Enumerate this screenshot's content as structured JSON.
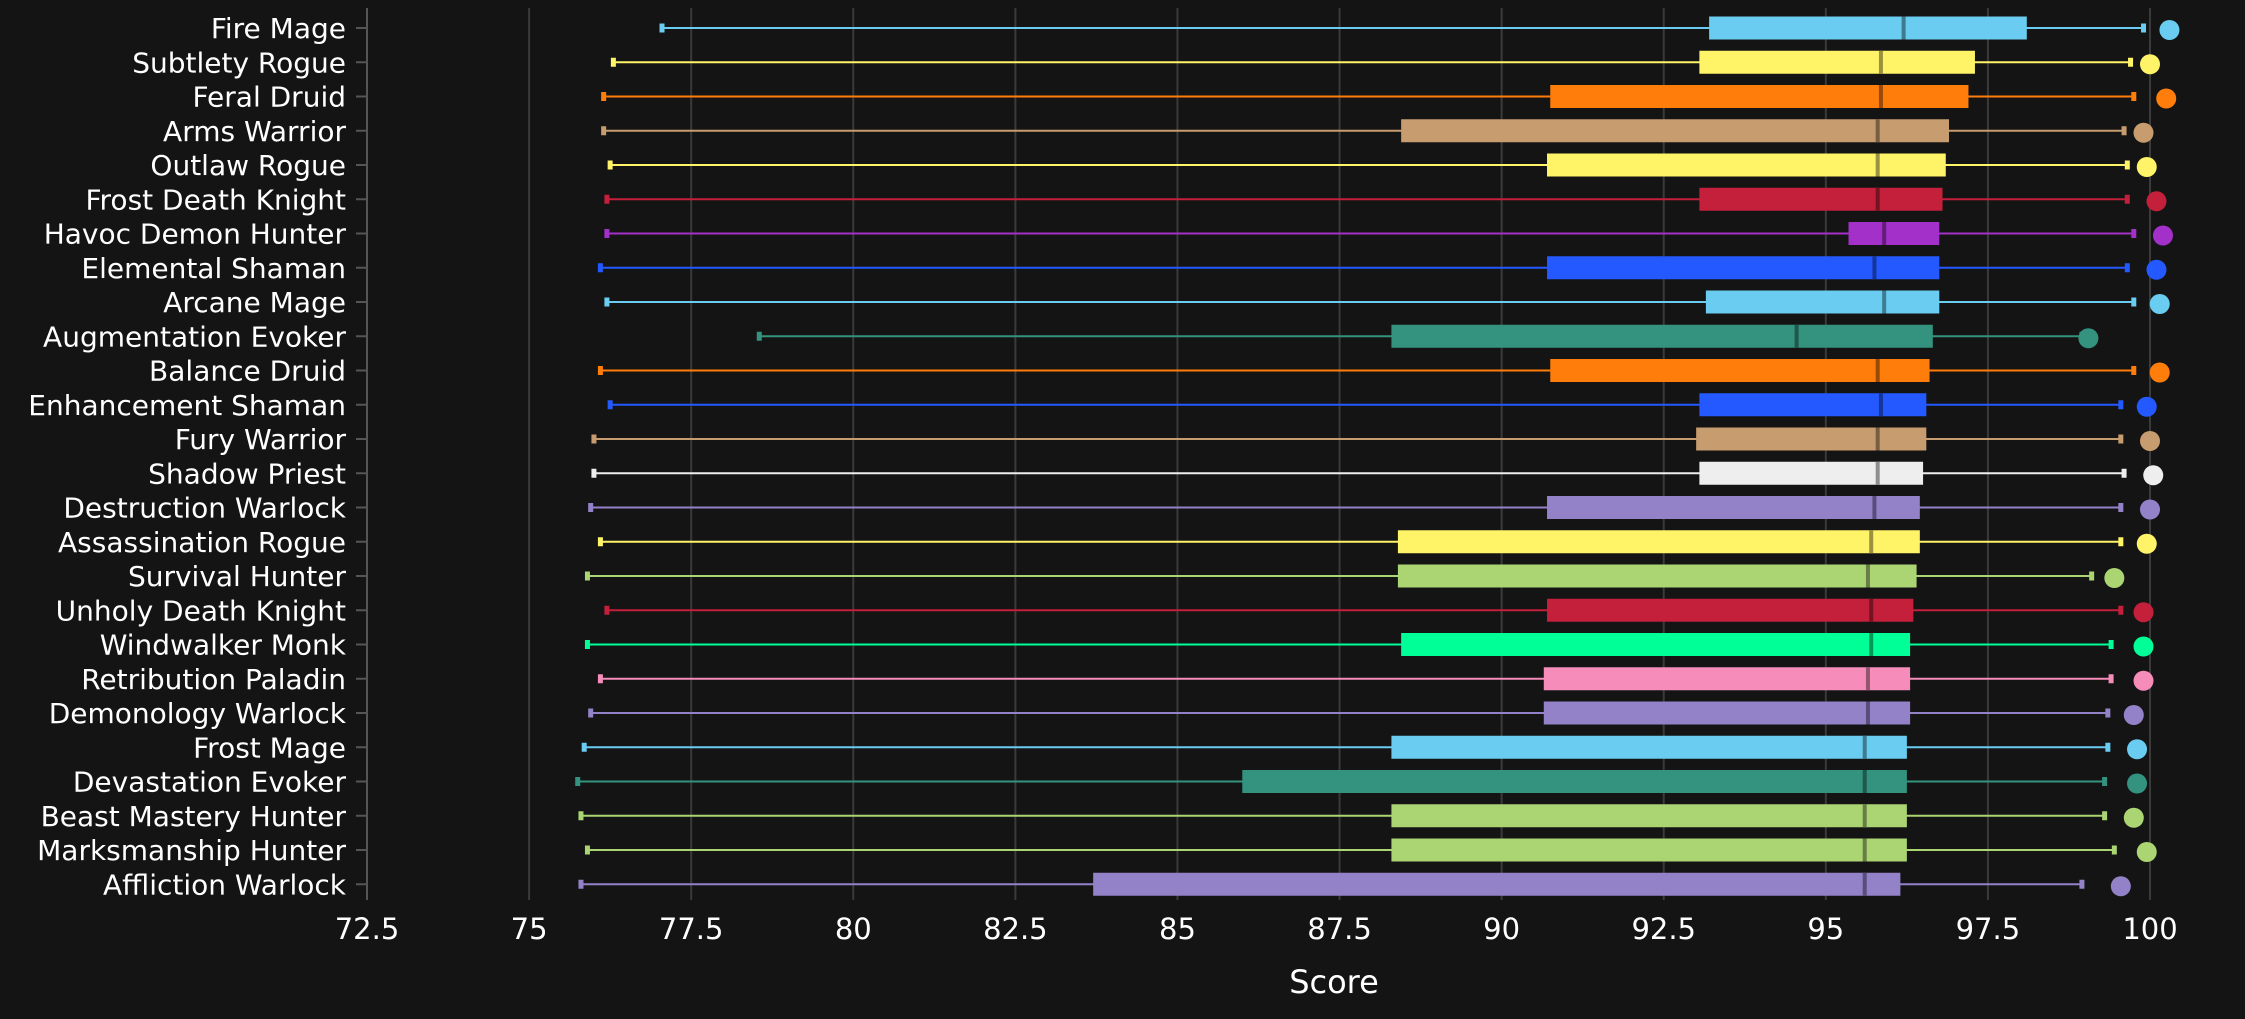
{
  "chart_data": {
    "type": "boxplot",
    "title": "",
    "xlabel": "Score",
    "ylabel": "",
    "xlim": [
      72.5,
      100
    ],
    "x_ticks": [
      "72.5",
      "75",
      "77.5",
      "80",
      "82.5",
      "85",
      "87.5",
      "90",
      "92.5",
      "95",
      "97.5",
      "100"
    ],
    "grid": "vertical",
    "background": "#141414",
    "series": [
      {
        "name": "Fire Mage",
        "color": "#69ccf0",
        "min": 77.05,
        "q1": 93.2,
        "median": 96.2,
        "q3": 98.1,
        "max": 99.9,
        "outliers": [
          100.3
        ]
      },
      {
        "name": "Subtlety Rogue",
        "color": "#fff468",
        "min": 76.3,
        "q1": 93.05,
        "median": 95.85,
        "q3": 97.3,
        "max": 99.7,
        "outliers": [
          100.0
        ]
      },
      {
        "name": "Feral Druid",
        "color": "#ff7d0a",
        "min": 76.15,
        "q1": 90.75,
        "median": 95.85,
        "q3": 97.2,
        "max": 99.75,
        "outliers": [
          100.25
        ]
      },
      {
        "name": "Arms Warrior",
        "color": "#c79c6e",
        "min": 76.15,
        "q1": 88.45,
        "median": 95.8,
        "q3": 96.9,
        "max": 99.6,
        "outliers": [
          99.9
        ]
      },
      {
        "name": "Outlaw Rogue",
        "color": "#fff468",
        "min": 76.25,
        "q1": 90.7,
        "median": 95.8,
        "q3": 96.85,
        "max": 99.65,
        "outliers": [
          99.95
        ]
      },
      {
        "name": "Frost Death Knight",
        "color": "#c41f3b",
        "min": 76.2,
        "q1": 93.05,
        "median": 95.8,
        "q3": 96.8,
        "max": 99.65,
        "outliers": [
          100.1
        ]
      },
      {
        "name": "Havoc Demon Hunter",
        "color": "#a330c9",
        "min": 76.2,
        "q1": 95.35,
        "median": 95.9,
        "q3": 96.75,
        "max": 99.75,
        "outliers": [
          100.2
        ]
      },
      {
        "name": "Elemental Shaman",
        "color": "#2359ff",
        "min": 76.1,
        "q1": 90.7,
        "median": 95.75,
        "q3": 96.75,
        "max": 99.65,
        "outliers": [
          100.1
        ]
      },
      {
        "name": "Arcane Mage",
        "color": "#69ccf0",
        "min": 76.2,
        "q1": 93.15,
        "median": 95.9,
        "q3": 96.75,
        "max": 99.75,
        "outliers": [
          100.15
        ]
      },
      {
        "name": "Augmentation Evoker",
        "color": "#33937f",
        "min": 78.55,
        "q1": 88.3,
        "median": 94.55,
        "q3": 96.65,
        "max": 98.95,
        "outliers": [
          99.05
        ]
      },
      {
        "name": "Balance Druid",
        "color": "#ff7d0a",
        "min": 76.1,
        "q1": 90.75,
        "median": 95.8,
        "q3": 96.6,
        "max": 99.75,
        "outliers": [
          100.15
        ]
      },
      {
        "name": "Enhancement Shaman",
        "color": "#2359ff",
        "min": 76.25,
        "q1": 93.05,
        "median": 95.85,
        "q3": 96.55,
        "max": 99.55,
        "outliers": [
          99.95
        ]
      },
      {
        "name": "Fury Warrior",
        "color": "#c79c6e",
        "min": 76.0,
        "q1": 93.0,
        "median": 95.8,
        "q3": 96.55,
        "max": 99.55,
        "outliers": [
          100.0
        ]
      },
      {
        "name": "Shadow Priest",
        "color": "#eeeeee",
        "min": 76.0,
        "q1": 93.05,
        "median": 95.8,
        "q3": 96.5,
        "max": 99.6,
        "outliers": [
          100.05
        ]
      },
      {
        "name": "Destruction Warlock",
        "color": "#9482c9",
        "min": 75.95,
        "q1": 90.7,
        "median": 95.75,
        "q3": 96.45,
        "max": 99.55,
        "outliers": [
          100.0
        ]
      },
      {
        "name": "Assassination Rogue",
        "color": "#fff468",
        "min": 76.1,
        "q1": 88.4,
        "median": 95.7,
        "q3": 96.45,
        "max": 99.55,
        "outliers": [
          99.95
        ]
      },
      {
        "name": "Survival Hunter",
        "color": "#abd473",
        "min": 75.9,
        "q1": 88.4,
        "median": 95.65,
        "q3": 96.4,
        "max": 99.1,
        "outliers": [
          99.45
        ]
      },
      {
        "name": "Unholy Death Knight",
        "color": "#c41f3b",
        "min": 76.2,
        "q1": 90.7,
        "median": 95.7,
        "q3": 96.35,
        "max": 99.55,
        "outliers": [
          99.9
        ]
      },
      {
        "name": "Windwalker Monk",
        "color": "#00ff96",
        "min": 75.9,
        "q1": 88.45,
        "median": 95.7,
        "q3": 96.3,
        "max": 99.4,
        "outliers": [
          99.9
        ]
      },
      {
        "name": "Retribution Paladin",
        "color": "#f58cba",
        "min": 76.1,
        "q1": 90.65,
        "median": 95.65,
        "q3": 96.3,
        "max": 99.4,
        "outliers": [
          99.9
        ]
      },
      {
        "name": "Demonology Warlock",
        "color": "#9482c9",
        "min": 75.95,
        "q1": 90.65,
        "median": 95.65,
        "q3": 96.3,
        "max": 99.35,
        "outliers": [
          99.75
        ]
      },
      {
        "name": "Frost Mage",
        "color": "#69ccf0",
        "min": 75.85,
        "q1": 88.3,
        "median": 95.6,
        "q3": 96.25,
        "max": 99.35,
        "outliers": [
          99.8
        ]
      },
      {
        "name": "Devastation Evoker",
        "color": "#33937f",
        "min": 75.75,
        "q1": 86.0,
        "median": 95.6,
        "q3": 96.25,
        "max": 99.3,
        "outliers": [
          99.8
        ]
      },
      {
        "name": "Beast Mastery Hunter",
        "color": "#abd473",
        "min": 75.8,
        "q1": 88.3,
        "median": 95.6,
        "q3": 96.25,
        "max": 99.3,
        "outliers": [
          99.75
        ]
      },
      {
        "name": "Marksmanship Hunter",
        "color": "#abd473",
        "min": 75.9,
        "q1": 88.3,
        "median": 95.6,
        "q3": 96.25,
        "max": 99.45,
        "outliers": [
          99.95
        ]
      },
      {
        "name": "Affliction Warlock",
        "color": "#9482c9",
        "min": 75.8,
        "q1": 83.7,
        "median": 95.6,
        "q3": 96.15,
        "max": 98.95,
        "outliers": [
          99.55
        ]
      }
    ]
  }
}
